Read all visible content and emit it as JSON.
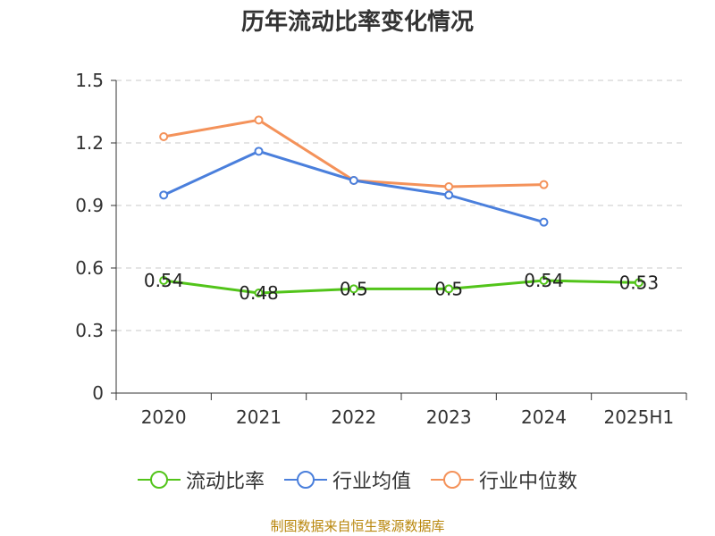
{
  "title": "历年流动比率变化情况",
  "source": "制图数据来自恒生聚源数据库",
  "chart_data": {
    "type": "line",
    "title": "历年流动比率变化情况",
    "categories": [
      "2020",
      "2021",
      "2022",
      "2023",
      "2024",
      "2025H1"
    ],
    "ylim": [
      0,
      1.5
    ],
    "yticks": [
      "0",
      "0.3",
      "0.6",
      "0.9",
      "1.2",
      "1.5"
    ],
    "grid": true,
    "legend_position": "bottom",
    "series": [
      {
        "name": "流动比率",
        "color": "#52c41a",
        "values": [
          0.54,
          0.48,
          0.5,
          0.5,
          0.54,
          0.53
        ],
        "labels": [
          "0.54",
          "0.48",
          "0.5",
          "0.5",
          "0.54",
          "0.53"
        ]
      },
      {
        "name": "行业均值",
        "color": "#4a7fdc",
        "values": [
          0.95,
          1.16,
          1.02,
          0.95,
          0.82,
          null
        ]
      },
      {
        "name": "行业中位数",
        "color": "#f4925a",
        "values": [
          1.23,
          1.31,
          1.02,
          0.99,
          1.0,
          null
        ]
      }
    ]
  }
}
